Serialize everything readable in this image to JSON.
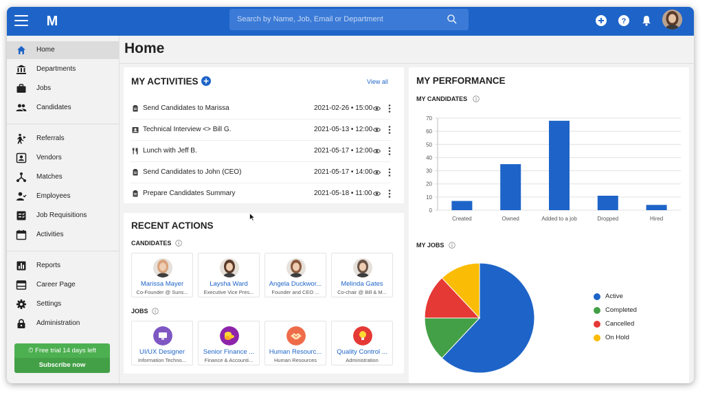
{
  "header": {
    "logo_letter": "M",
    "search": {
      "placeholder": "Search by Name, Job, Email or Department"
    },
    "icons": [
      "menu-icon",
      "add-icon",
      "help-icon",
      "notifications-icon"
    ],
    "accent_color": "#1e64c8"
  },
  "sidebar": {
    "groups": [
      [
        {
          "label": "Home",
          "icon": "home-icon",
          "active": true
        },
        {
          "label": "Departments",
          "icon": "bank-icon"
        },
        {
          "label": "Jobs",
          "icon": "briefcase-icon"
        },
        {
          "label": "Candidates",
          "icon": "people-icon"
        }
      ],
      [
        {
          "label": "Referrals",
          "icon": "referral-icon"
        },
        {
          "label": "Vendors",
          "icon": "vendor-icon"
        },
        {
          "label": "Matches",
          "icon": "matches-icon"
        },
        {
          "label": "Employees",
          "icon": "employee-icon"
        },
        {
          "label": "Job Requisitions",
          "icon": "requisition-icon"
        },
        {
          "label": "Activities",
          "icon": "calendar-icon"
        }
      ],
      [
        {
          "label": "Reports",
          "icon": "reports-icon"
        },
        {
          "label": "Career Page",
          "icon": "career-page-icon"
        },
        {
          "label": "Settings",
          "icon": "gear-icon"
        },
        {
          "label": "Administration",
          "icon": "lock-icon"
        }
      ]
    ],
    "trial": {
      "text": "Free trial 14 days left",
      "button": "Subscribe now"
    }
  },
  "page": {
    "title": "Home"
  },
  "activities": {
    "title": "MY ACTIVITIES",
    "view_all": "View all",
    "items": [
      {
        "text": "Send Candidates to Marissa",
        "date": "2021-02-26 • 15:00",
        "icon": "clipboard-icon"
      },
      {
        "text": "Technical Interview <> Bill G.",
        "date": "2021-05-13 • 12:00",
        "icon": "contact-card-icon"
      },
      {
        "text": "Lunch with Jeff B.",
        "date": "2021-05-17 • 12:00",
        "icon": "restaurant-icon"
      },
      {
        "text": "Send Candidates to John (CEO)",
        "date": "2021-05-17 • 14:00",
        "icon": "clipboard-icon"
      },
      {
        "text": "Prepare Candidates Summary",
        "date": "2021-05-18 • 11:00",
        "icon": "clipboard-icon"
      }
    ]
  },
  "recent": {
    "title": "RECENT ACTIONS",
    "candidates_title": "CANDIDATES",
    "candidates": [
      {
        "name": "Marissa Mayer",
        "sub": "Co-Founder @ Suns...",
        "color": "#d9a27a"
      },
      {
        "name": "Laysha Ward",
        "sub": "Executive Vice Pres...",
        "color": "#5a3a2a"
      },
      {
        "name": "Angela Duckwor...",
        "sub": "Founder and CEO ...",
        "color": "#8a5a3c"
      },
      {
        "name": "Melinda Gates",
        "sub": "Co-chair @ Bill & M...",
        "color": "#6b5446"
      }
    ],
    "jobs_title": "JOBS",
    "jobs": [
      {
        "name": "UI/UX Designer",
        "sub": "Information Techno...",
        "color": "#7e57c2",
        "icon": "monitor-icon"
      },
      {
        "name": "Senior Finance ...",
        "sub": "Finance & Accounti...",
        "color": "#8e24aa",
        "icon": "coins-icon"
      },
      {
        "name": "Human Resourc...",
        "sub": "Human Resources",
        "color": "#ef6c4a",
        "icon": "handshake-icon"
      },
      {
        "name": "Quality Control ...",
        "sub": "Administration",
        "color": "#e53935",
        "icon": "lightbulb-icon"
      }
    ]
  },
  "performance": {
    "title": "MY PERFORMANCE",
    "candidates_title": "MY CANDIDATES",
    "jobs_title": "MY JOBS"
  },
  "chart_data": [
    {
      "type": "bar",
      "title": "MY CANDIDATES",
      "categories": [
        "Created",
        "Owned",
        "Added to a job",
        "Dropped",
        "Hired"
      ],
      "values": [
        7,
        35,
        68,
        11,
        4
      ],
      "ylim": [
        0,
        70
      ],
      "yticks": [
        0,
        10,
        20,
        30,
        40,
        50,
        60,
        70
      ],
      "grid": true,
      "color": "#1e64c8"
    },
    {
      "type": "pie",
      "title": "MY JOBS",
      "labels": [
        "Active",
        "Completed",
        "Cancelled",
        "On Hold"
      ],
      "values": [
        62,
        13,
        13,
        12
      ],
      "colors": [
        "#1e64c8",
        "#43a047",
        "#e53935",
        "#fbbc05"
      ],
      "legend": "right"
    }
  ]
}
